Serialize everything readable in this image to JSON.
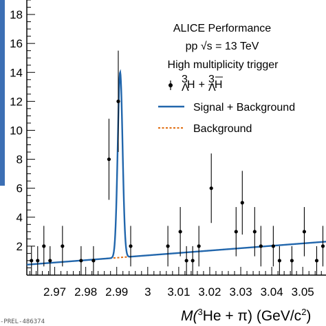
{
  "chart_data": {
    "type": "scatter",
    "title": "",
    "xlabel_prefix": "M(",
    "xlabel_sup": "3",
    "xlabel_mid": "He + π) (GeV/c",
    "xlabel_sup2": "2",
    "xlabel_suffix": ")",
    "ylabel": "",
    "xlim": [
      2.961,
      3.0575
    ],
    "ylim": [
      0,
      19
    ],
    "x_ticks": [
      2.97,
      2.98,
      2.99,
      3.0,
      3.01,
      3.02,
      3.03,
      3.04,
      3.05
    ],
    "x_tick_labels": [
      "2.97",
      "2.98",
      "2.99",
      "3",
      "3.01",
      "3.02",
      "3.03",
      "3.04",
      "3.05"
    ],
    "y_ticks": [
      2,
      4,
      6,
      8,
      10,
      12,
      14,
      16,
      18
    ],
    "y_tick_labels": [
      "2",
      "4",
      "6",
      "8",
      "10",
      "12",
      "14",
      "16",
      "18"
    ],
    "grid": false,
    "legend_position": "top-right",
    "legend_header": [
      "ALICE Performance",
      "pp √s = 13 TeV",
      "High multiplicity trigger"
    ],
    "series": [
      {
        "name": "³ΛH + ³Λ̄H̄",
        "kind": "points",
        "color": "#000000",
        "points": [
          {
            "x": 2.9625,
            "y": 1,
            "err": 1.0
          },
          {
            "x": 2.9645,
            "y": 1,
            "err": 1.0
          },
          {
            "x": 2.9665,
            "y": 2,
            "err": 1.4
          },
          {
            "x": 2.9685,
            "y": 1,
            "err": 1.0
          },
          {
            "x": 2.9725,
            "y": 2,
            "err": 1.4
          },
          {
            "x": 2.9785,
            "y": 1,
            "err": 1.0
          },
          {
            "x": 2.9825,
            "y": 1,
            "err": 1.0
          },
          {
            "x": 2.9875,
            "y": 8,
            "err": 2.8
          },
          {
            "x": 2.9905,
            "y": 12,
            "err": 3.5
          },
          {
            "x": 2.9945,
            "y": 2,
            "err": 1.4
          },
          {
            "x": 3.0065,
            "y": 2,
            "err": 1.4
          },
          {
            "x": 3.0105,
            "y": 3,
            "err": 1.7
          },
          {
            "x": 3.0125,
            "y": 1,
            "err": 1.0
          },
          {
            "x": 3.0145,
            "y": 1,
            "err": 1.0
          },
          {
            "x": 3.0165,
            "y": 2,
            "err": 1.4
          },
          {
            "x": 3.0205,
            "y": 6,
            "err": 2.4
          },
          {
            "x": 3.0285,
            "y": 3,
            "err": 1.7
          },
          {
            "x": 3.0305,
            "y": 5,
            "err": 2.2
          },
          {
            "x": 3.0345,
            "y": 3,
            "err": 1.7
          },
          {
            "x": 3.0365,
            "y": 2,
            "err": 1.4
          },
          {
            "x": 3.0405,
            "y": 2,
            "err": 1.4
          },
          {
            "x": 3.0425,
            "y": 1,
            "err": 1.0
          },
          {
            "x": 3.0465,
            "y": 1,
            "err": 1.0
          },
          {
            "x": 3.0505,
            "y": 3,
            "err": 1.7
          },
          {
            "x": 3.0545,
            "y": 1,
            "err": 1.0
          },
          {
            "x": 3.0565,
            "y": 2,
            "err": 1.4
          }
        ]
      },
      {
        "name": "Signal + Background",
        "kind": "line",
        "color": "#2166ac",
        "background": {
          "x0": 2.961,
          "y0": 0.72,
          "slope": 16.5
        },
        "gauss": {
          "amp": 12.8,
          "mean": 2.9911,
          "sigma": 0.00078,
          "cut_lo": 2.9853,
          "cut_hi": 2.9953
        }
      },
      {
        "name": "Background",
        "kind": "dashed-line",
        "color": "#e06d10",
        "x_range": [
          2.9853,
          2.9953
        ]
      }
    ]
  },
  "footer": {
    "preliminary_id": "-PREL-486374"
  }
}
